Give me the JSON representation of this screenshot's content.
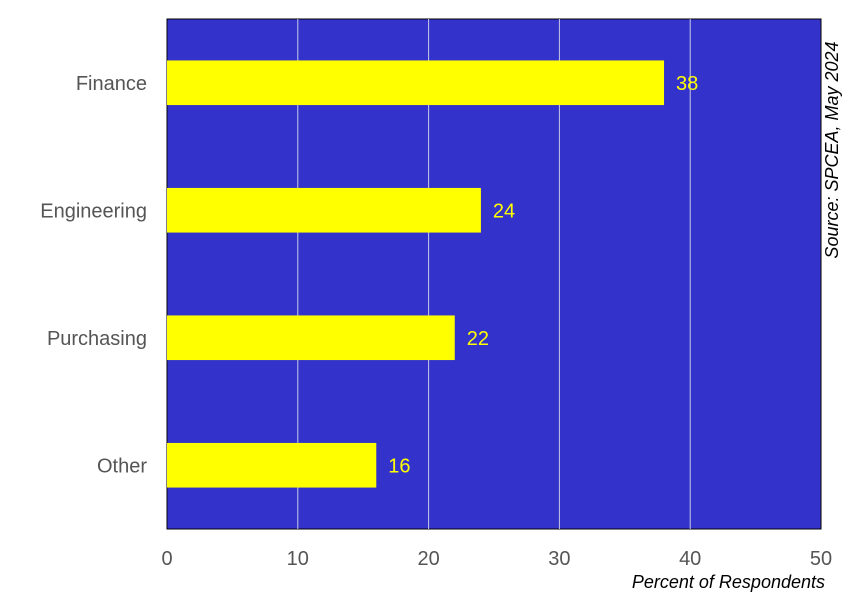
{
  "chart_data": {
    "type": "bar",
    "orientation": "horizontal",
    "categories": [
      "Finance",
      "Engineering",
      "Purchasing",
      "Other"
    ],
    "values": [
      38,
      24,
      22,
      16
    ],
    "data_labels": [
      "38",
      "24",
      "22",
      "16"
    ],
    "xlabel": "Percent of Respondents",
    "ylabel": "",
    "xlim": [
      0,
      50
    ],
    "x_ticks": [
      0,
      10,
      20,
      30,
      40,
      50
    ],
    "grid": "vertical",
    "source": "Source:  SPCEA, May 2024"
  },
  "colors": {
    "plot_background": "#3333cc",
    "bar_fill": "#ffff00",
    "data_label": "#ffff00",
    "grid_line": "#c8c8e8"
  }
}
